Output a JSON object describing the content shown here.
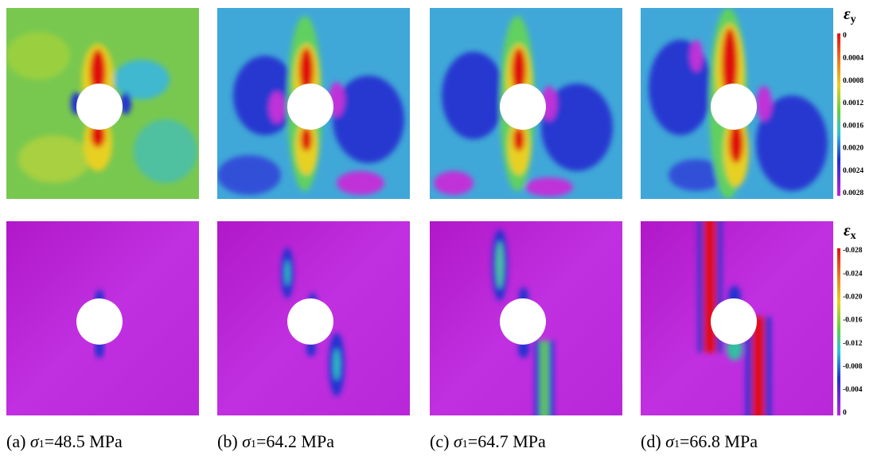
{
  "colorbars": [
    {
      "symbol": "ε",
      "subscript": "y",
      "labels": [
        "0",
        "0.0004",
        "0.0008",
        "0.0012",
        "0.0016",
        "0.0020",
        "0.0024",
        "0.0028"
      ]
    },
    {
      "symbol": "ε",
      "subscript": "x",
      "labels": [
        "-0.028",
        "-0.024",
        "-0.020",
        "-0.016",
        "-0.012",
        "-0.008",
        "-0.004",
        "0"
      ]
    }
  ],
  "captions": [
    {
      "label": "(a)",
      "symbol": "σ",
      "subscript": "1",
      "value": "=48.5 MPa"
    },
    {
      "label": "(b)",
      "symbol": "σ",
      "subscript": "1",
      "value": "=64.2 MPa"
    },
    {
      "label": "(c)",
      "symbol": "σ",
      "subscript": "1",
      "value": "=64.7 MPa"
    },
    {
      "label": "(d)",
      "symbol": "σ",
      "subscript": "1",
      "value": "=66.8 MPa"
    }
  ]
}
